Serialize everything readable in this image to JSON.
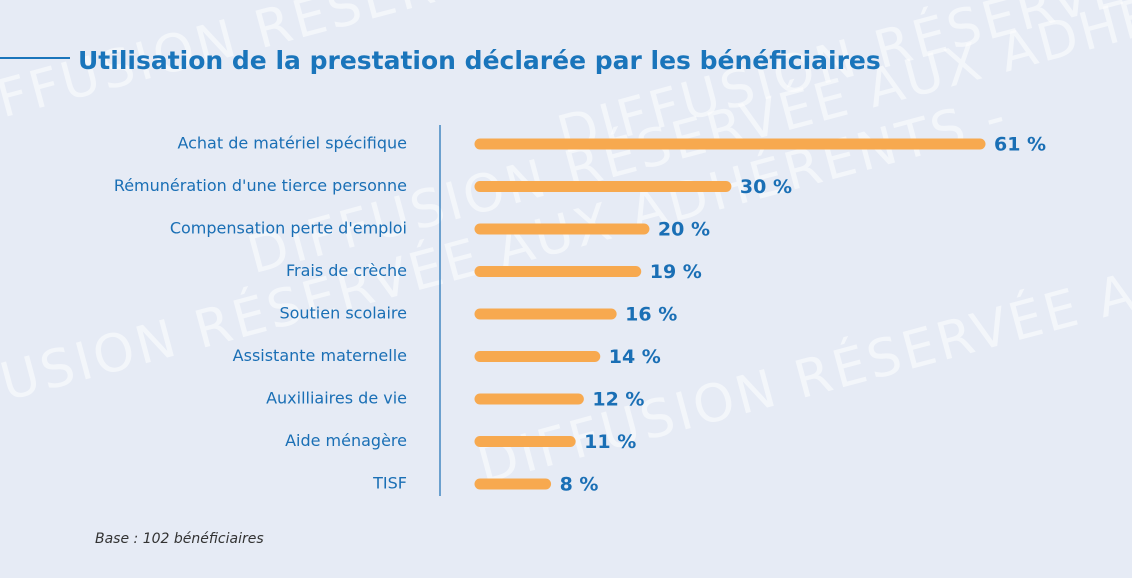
{
  "chart_data": {
    "type": "bar",
    "orientation": "horizontal",
    "title": "Utilisation de la prestation déclarée par les bénéficiaires",
    "categories": [
      "Achat de matériel spécifique",
      "Rémunération d'une tierce personne",
      "Compensation perte d'emploi",
      "Frais de crèche",
      "Soutien scolaire",
      "Assistante maternelle",
      "Auxilliaires de vie",
      "Aide ménagère",
      "TISF"
    ],
    "values": [
      61,
      30,
      20,
      19,
      16,
      14,
      12,
      11,
      8
    ],
    "value_labels": [
      "61 %",
      "30 %",
      "20 %",
      "19 %",
      "16 %",
      "14 %",
      "12 %",
      "11 %",
      "8 %"
    ],
    "color": "#f7a94f",
    "note": "Base : 102 bénéficiaires",
    "watermark": "DIFFUSION RÉSERVÉE AUX ADHÉRENTS -"
  }
}
